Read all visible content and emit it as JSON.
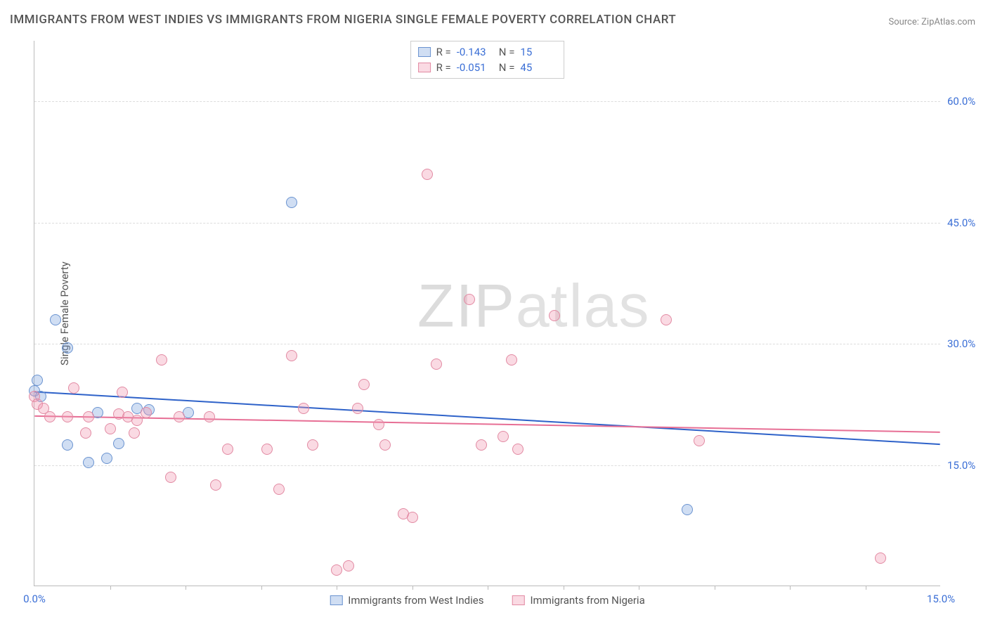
{
  "title": "IMMIGRANTS FROM WEST INDIES VS IMMIGRANTS FROM NIGERIA SINGLE FEMALE POVERTY CORRELATION CHART",
  "source": "Source: ZipAtlas.com",
  "watermark": {
    "bold": "ZIP",
    "light": "atlas"
  },
  "ylabel": "Single Female Poverty",
  "chart": {
    "type": "scatter",
    "xlim": [
      0,
      15
    ],
    "ylim": [
      0,
      67.5
    ],
    "x_ticks_major": [
      0,
      15
    ],
    "x_ticks_minor": [
      1.25,
      2.5,
      3.75,
      5.0,
      6.25,
      7.5,
      8.75,
      10.0,
      11.25,
      12.5,
      13.75
    ],
    "y_ticks": [
      15,
      30,
      45,
      60
    ],
    "x_tick_labels": {
      "0": "0.0%",
      "15": "15.0%"
    },
    "y_tick_labels": {
      "15": "15.0%",
      "30": "30.0%",
      "45": "45.0%",
      "60": "60.0%"
    },
    "background_color": "#ffffff",
    "grid_color": "#dddddd",
    "axis_color": "#bbbbbb",
    "tick_label_color": "#3b6fd6",
    "marker_radius": 8,
    "marker_border_width": 1.2,
    "series": [
      {
        "name": "Immigrants from West Indies",
        "color_fill": "rgba(120,160,220,0.35)",
        "color_stroke": "#6a93d0",
        "R": "-0.143",
        "N": "15",
        "trend": {
          "y_at_x0": 24.0,
          "y_at_xmax": 17.5,
          "stroke": "#2e62c9",
          "width": 2
        },
        "points": [
          [
            0.0,
            24.2
          ],
          [
            0.05,
            25.5
          ],
          [
            0.35,
            33.0
          ],
          [
            0.55,
            29.5
          ],
          [
            0.55,
            17.5
          ],
          [
            0.9,
            15.3
          ],
          [
            1.05,
            21.5
          ],
          [
            1.2,
            15.8
          ],
          [
            1.4,
            17.7
          ],
          [
            1.7,
            22.0
          ],
          [
            1.9,
            21.8
          ],
          [
            2.55,
            21.5
          ],
          [
            4.25,
            47.5
          ],
          [
            10.8,
            9.5
          ],
          [
            0.1,
            23.5
          ]
        ]
      },
      {
        "name": "Immigrants from Nigeria",
        "color_fill": "rgba(240,150,175,0.35)",
        "color_stroke": "#e28aa3",
        "R": "-0.051",
        "N": "45",
        "trend": {
          "y_at_x0": 21.0,
          "y_at_xmax": 19.0,
          "stroke": "#e76f95",
          "width": 2
        },
        "points": [
          [
            0.0,
            23.5
          ],
          [
            0.05,
            22.5
          ],
          [
            0.25,
            21.0
          ],
          [
            0.55,
            21.0
          ],
          [
            0.65,
            24.5
          ],
          [
            0.85,
            19.0
          ],
          [
            0.9,
            21.0
          ],
          [
            1.25,
            19.5
          ],
          [
            1.4,
            21.3
          ],
          [
            1.45,
            24.0
          ],
          [
            1.55,
            21.0
          ],
          [
            1.65,
            19.0
          ],
          [
            1.7,
            20.5
          ],
          [
            1.85,
            21.5
          ],
          [
            2.1,
            28.0
          ],
          [
            2.25,
            13.5
          ],
          [
            2.4,
            21.0
          ],
          [
            2.9,
            21.0
          ],
          [
            3.0,
            12.5
          ],
          [
            3.2,
            17.0
          ],
          [
            3.85,
            17.0
          ],
          [
            4.05,
            12.0
          ],
          [
            4.25,
            28.5
          ],
          [
            4.45,
            22.0
          ],
          [
            4.6,
            17.5
          ],
          [
            5.0,
            2.0
          ],
          [
            5.2,
            2.5
          ],
          [
            5.35,
            22.0
          ],
          [
            5.45,
            25.0
          ],
          [
            5.7,
            20.0
          ],
          [
            5.8,
            17.5
          ],
          [
            6.1,
            9.0
          ],
          [
            6.25,
            8.5
          ],
          [
            6.5,
            51.0
          ],
          [
            6.65,
            27.5
          ],
          [
            7.2,
            35.5
          ],
          [
            7.4,
            17.5
          ],
          [
            7.75,
            18.5
          ],
          [
            7.9,
            28.0
          ],
          [
            8.0,
            17.0
          ],
          [
            8.6,
            33.5
          ],
          [
            10.45,
            33.0
          ],
          [
            11.0,
            18.0
          ],
          [
            14.0,
            3.5
          ],
          [
            0.15,
            22.0
          ]
        ]
      }
    ]
  },
  "legend_top": [
    {
      "series_idx": 0,
      "r_label": "R =",
      "n_label": "N ="
    },
    {
      "series_idx": 1,
      "r_label": "R =",
      "n_label": "N ="
    }
  ]
}
